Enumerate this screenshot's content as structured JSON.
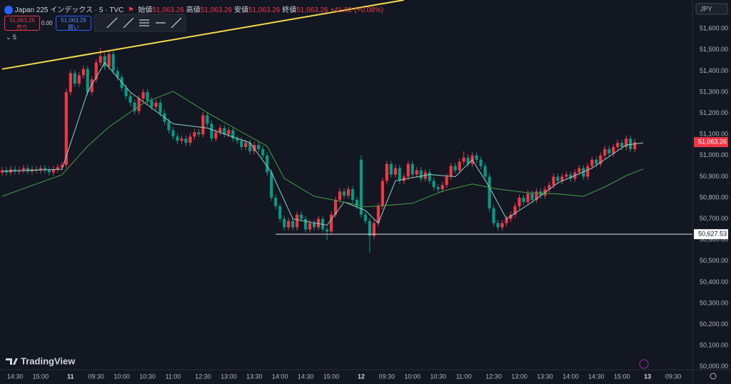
{
  "ui": {
    "symbol": "Japan 225 インデックス · 5 · TVC",
    "open_label": "始値",
    "open": "51,063.26",
    "high_label": "高値",
    "high": "51,063.26",
    "low_label": "安値",
    "low": "51,063.26",
    "close_label": "終値",
    "close": "51,063.26",
    "change": "+41.02 (+0.08%)",
    "sell_price": "51,063.26",
    "sell_label": "売り",
    "spread": "0.00",
    "buy_price": "51,063.26",
    "buy_label": "買い",
    "indicator": "5",
    "currency": "JPY",
    "logo": "TradingView"
  },
  "chart_data": {
    "type": "candlestick",
    "up_color": "#f23645",
    "down_color": "#089981",
    "open": [
      50920,
      50930,
      50920,
      50935,
      50925,
      50930,
      50940,
      50925,
      50935,
      50930,
      50940,
      50930,
      50920,
      50935,
      50945,
      50955,
      51300,
      51390,
      51340,
      51380,
      51410,
      51300,
      51360,
      51440,
      51470,
      51420,
      51480,
      51400,
      51370,
      51320,
      51280,
      51250,
      51210,
      51270,
      51300,
      51260,
      51230,
      51250,
      51200,
      51160,
      51120,
      51090,
      51070,
      51080,
      51060,
      51090,
      51110,
      51100,
      51190,
      51150,
      51080,
      51110,
      51130,
      51100,
      51120,
      51080,
      51070,
      51040,
      51060,
      51020,
      51050,
      51030,
      51000,
      50920,
      50800,
      50760,
      50700,
      50660,
      50690,
      50660,
      50720,
      50700,
      50650,
      50680,
      50660,
      50700,
      50650,
      50640,
      50720,
      50790,
      50830,
      50810,
      50840,
      50790,
      50980,
      50720,
      50690,
      50620,
      50680,
      50760,
      50880,
      50960,
      50910,
      50940,
      50880,
      50900,
      50960,
      50910,
      50930,
      50890,
      50920,
      50880,
      50850,
      50840,
      50860,
      50900,
      50950,
      50930,
      50970,
      50990,
      50960,
      51000,
      50980,
      50950,
      50900,
      50750,
      50680,
      50660,
      50680,
      50700,
      50720,
      50760,
      50800,
      50780,
      50820,
      50790,
      50830,
      50810,
      50840,
      50860,
      50900,
      50880,
      50900,
      50910,
      50890,
      50920,
      50940,
      50900,
      50950,
      50980,
      50960,
      51000,
      51030,
      51010,
      51040,
      51060,
      51040,
      51080,
      51030
    ],
    "high": [
      50945,
      50945,
      50950,
      50950,
      50945,
      50955,
      50955,
      50950,
      50950,
      50955,
      50955,
      50945,
      50950,
      50960,
      50970,
      51315,
      51405,
      51405,
      51395,
      51425,
      51425,
      51375,
      51455,
      51510,
      51485,
      51495,
      51495,
      51415,
      51385,
      51335,
      51295,
      51265,
      51285,
      51315,
      51315,
      51275,
      51265,
      51265,
      51215,
      51175,
      51135,
      51105,
      51095,
      51095,
      51105,
      51125,
      51125,
      51205,
      51205,
      51165,
      51125,
      51145,
      51145,
      51135,
      51135,
      51095,
      51085,
      51075,
      51075,
      51065,
      51065,
      51045,
      51015,
      50935,
      50815,
      50775,
      50715,
      50705,
      50705,
      50735,
      50735,
      50715,
      50695,
      50695,
      50715,
      50715,
      50665,
      50735,
      50805,
      50845,
      50845,
      50855,
      50855,
      50805,
      51000,
      50735,
      50705,
      50695,
      50775,
      50895,
      50975,
      50975,
      50955,
      50955,
      50915,
      50975,
      50975,
      50945,
      50945,
      50935,
      50935,
      50895,
      50865,
      50875,
      50915,
      50965,
      50965,
      50985,
      51020,
      51005,
      51015,
      51015,
      50995,
      50965,
      50915,
      50765,
      50695,
      50695,
      50715,
      50735,
      50775,
      50815,
      50815,
      50835,
      50835,
      50845,
      50845,
      50855,
      50875,
      50915,
      50915,
      50915,
      50925,
      50925,
      50935,
      50955,
      50955,
      50965,
      50995,
      50995,
      51015,
      51045,
      51045,
      51055,
      51075,
      51075,
      51095,
      51095,
      51080
    ],
    "low": [
      50905,
      50905,
      50905,
      50910,
      50910,
      50915,
      50910,
      50910,
      50915,
      50915,
      50915,
      50905,
      50905,
      50920,
      50930,
      50940,
      51285,
      51325,
      51325,
      51365,
      51285,
      51285,
      51345,
      51425,
      51405,
      51405,
      51385,
      51355,
      51305,
      51265,
      51235,
      51195,
      51195,
      51255,
      51245,
      51215,
      51215,
      51185,
      51145,
      51105,
      51075,
      51055,
      51055,
      51045,
      51045,
      51075,
      51085,
      51085,
      51135,
      51065,
      51065,
      51095,
      51085,
      51085,
      51065,
      51055,
      51025,
      51025,
      51005,
      51005,
      51015,
      50985,
      50905,
      50785,
      50745,
      50685,
      50645,
      50645,
      50645,
      50645,
      50685,
      50635,
      50635,
      50645,
      50645,
      50635,
      50600,
      50625,
      50705,
      50775,
      50795,
      50795,
      50775,
      50745,
      50705,
      50675,
      50540,
      50605,
      50665,
      50745,
      50865,
      50895,
      50895,
      50865,
      50865,
      50885,
      50895,
      50895,
      50875,
      50875,
      50865,
      50835,
      50825,
      50825,
      50845,
      50885,
      50915,
      50915,
      50955,
      50945,
      50945,
      50965,
      50935,
      50885,
      50735,
      50665,
      50645,
      50645,
      50665,
      50685,
      50705,
      50745,
      50765,
      50765,
      50775,
      50775,
      50795,
      50795,
      50825,
      50845,
      50865,
      50865,
      50885,
      50875,
      50875,
      50905,
      50885,
      50885,
      50935,
      50945,
      50945,
      50985,
      50995,
      50995,
      51025,
      51025,
      51025,
      51015,
      51015
    ],
    "close": [
      50930,
      50920,
      50935,
      50925,
      50930,
      50940,
      50925,
      50935,
      50930,
      50940,
      50930,
      50920,
      50935,
      50945,
      50955,
      51300,
      51390,
      51340,
      51380,
      51410,
      51300,
      51360,
      51440,
      51470,
      51420,
      51480,
      51400,
      51370,
      51320,
      51280,
      51250,
      51210,
      51270,
      51300,
      51260,
      51230,
      51250,
      51200,
      51160,
      51120,
      51090,
      51070,
      51080,
      51060,
      51090,
      51110,
      51100,
      51190,
      51150,
      51080,
      51110,
      51130,
      51100,
      51120,
      51080,
      51070,
      51040,
      51060,
      51020,
      51050,
      51030,
      51000,
      50920,
      50800,
      50760,
      50700,
      50660,
      50690,
      50660,
      50720,
      50700,
      50650,
      50680,
      50660,
      50700,
      50650,
      50640,
      50720,
      50790,
      50830,
      50810,
      50840,
      50790,
      50760,
      50720,
      50690,
      50620,
      50680,
      50760,
      50880,
      50960,
      50910,
      50940,
      50880,
      50900,
      50960,
      50910,
      50930,
      50890,
      50920,
      50880,
      50850,
      50840,
      50860,
      50900,
      50950,
      50930,
      50970,
      50990,
      50960,
      51000,
      50980,
      50950,
      50900,
      50750,
      50680,
      50660,
      50680,
      50700,
      50720,
      50760,
      50800,
      50780,
      50820,
      50790,
      50830,
      50810,
      50840,
      50860,
      50900,
      50880,
      50900,
      50910,
      50890,
      50920,
      50940,
      50900,
      50950,
      50980,
      50960,
      51000,
      51030,
      51010,
      51040,
      51060,
      51040,
      51080,
      51030,
      51063.26
    ],
    "lines": [
      {
        "color": "#8fd3c8",
        "x": [
          0,
          14,
          20,
          24,
          30,
          40,
          48,
          58,
          63,
          68,
          76,
          80,
          85,
          88,
          92,
          100,
          106,
          110,
          114,
          118,
          124,
          130,
          138,
          146,
          150
        ],
        "values": [
          50925,
          50935,
          51300,
          51440,
          51300,
          51150,
          51130,
          51060,
          50920,
          50700,
          50670,
          50780,
          50740,
          50680,
          50880,
          50910,
          50900,
          50980,
          50850,
          50700,
          50780,
          50870,
          50940,
          51050,
          51060
        ]
      },
      {
        "color": "#43a047",
        "x": [
          0,
          14,
          20,
          25,
          33,
          40,
          48,
          56,
          62,
          66,
          73,
          80,
          85,
          90,
          96,
          103,
          110,
          116,
          123,
          130,
          136,
          141,
          146,
          150
        ],
        "values": [
          50807,
          50909,
          51044,
          51135,
          51247,
          51304,
          51203,
          51111,
          51044,
          50892,
          50807,
          50780,
          50757,
          50764,
          50774,
          50831,
          50865,
          50841,
          50824,
          50818,
          50807,
          50851,
          50905,
          50936
        ]
      }
    ],
    "trendline": {
      "color": "#f5d94a",
      "x": [
        0,
        94
      ],
      "values": [
        51409,
        51736
      ]
    },
    "hline": {
      "value": 50627.53,
      "label": "50,627.53"
    },
    "last_price": {
      "value": 51063.26,
      "label": "51,063.26"
    },
    "xlim": [
      -0.5,
      161.5
    ],
    "ylim": [
      49986,
      51736
    ],
    "yticks": [
      {
        "value": 50000,
        "label": "50,000.00"
      },
      {
        "value": 50100,
        "label": "50,100.00"
      },
      {
        "value": 50200,
        "label": "50,200.00"
      },
      {
        "value": 50300,
        "label": "50,300.00"
      },
      {
        "value": 50400,
        "label": "50,400.00"
      },
      {
        "value": 50500,
        "label": "50,500.00"
      },
      {
        "value": 50600,
        "label": "50,600.00"
      },
      {
        "value": 50700,
        "label": "50,700.00"
      },
      {
        "value": 50800,
        "label": "50,800.00"
      },
      {
        "value": 50900,
        "label": "50,900.00"
      },
      {
        "value": 51000,
        "label": "51,000.00"
      },
      {
        "value": 51100,
        "label": "51,100.00"
      },
      {
        "value": 51200,
        "label": "51,200.00"
      },
      {
        "value": 51300,
        "label": "51,300.00"
      },
      {
        "value": 51400,
        "label": "51,400.00"
      },
      {
        "value": 51500,
        "label": "51,500.00"
      },
      {
        "value": 51600,
        "label": "51,600.00"
      }
    ],
    "xticks": [
      {
        "value": 3,
        "label": "14:30"
      },
      {
        "value": 9,
        "label": "15:00"
      },
      {
        "value": 16,
        "label": "11"
      },
      {
        "value": 22,
        "label": "09:30"
      },
      {
        "value": 28,
        "label": "10:00"
      },
      {
        "value": 34,
        "label": "10:30"
      },
      {
        "value": 40,
        "label": "11:00"
      },
      {
        "value": 47,
        "label": "12:30"
      },
      {
        "value": 53,
        "label": "13:00"
      },
      {
        "value": 59,
        "label": "13:30"
      },
      {
        "value": 65,
        "label": "14:00"
      },
      {
        "value": 71,
        "label": "14:30"
      },
      {
        "value": 77,
        "label": "15:00"
      },
      {
        "value": 84,
        "label": "12"
      },
      {
        "value": 90,
        "label": "09:30"
      },
      {
        "value": 96,
        "label": "10:00"
      },
      {
        "value": 102,
        "label": "10:30"
      },
      {
        "value": 108,
        "label": "11:00"
      },
      {
        "value": 115,
        "label": "12:30"
      },
      {
        "value": 121,
        "label": "13:00"
      },
      {
        "value": 127,
        "label": "13:30"
      },
      {
        "value": 133,
        "label": "14:00"
      },
      {
        "value": 139,
        "label": "14:30"
      },
      {
        "value": 145,
        "label": "15:00"
      },
      {
        "value": 151,
        "label": "13"
      },
      {
        "value": 157,
        "label": "09:30"
      }
    ]
  }
}
